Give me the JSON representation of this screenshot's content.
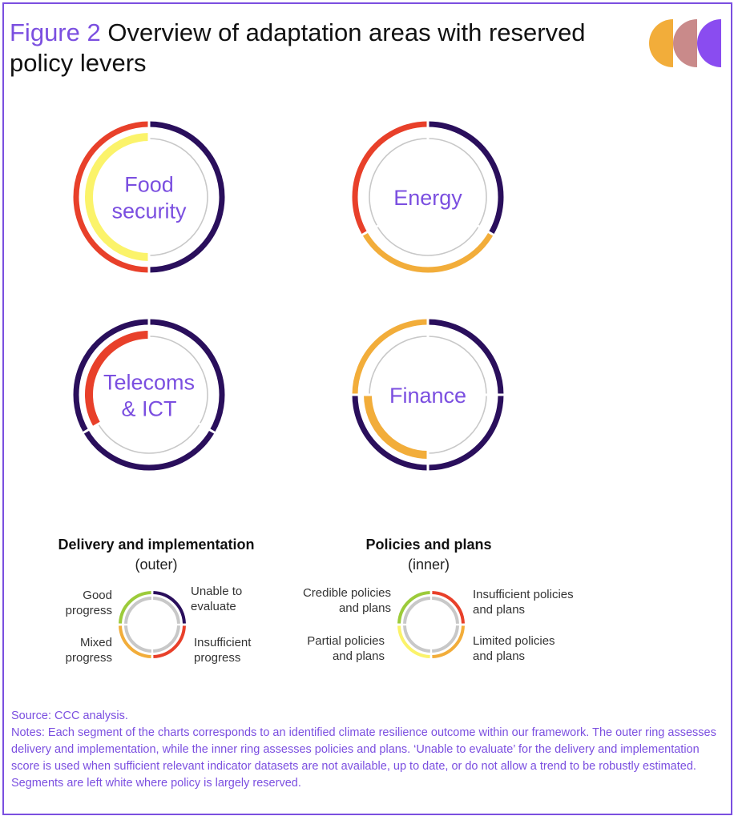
{
  "title": {
    "figure_label": "Figure 2",
    "text": "Overview of adaptation areas with reserved policy levers"
  },
  "colors": {
    "purple_accent": "#7b4fe0",
    "unable_to_evaluate": "#2a0f5c",
    "insufficient": "#e8402a",
    "mixed_limited": "#f2ad3a",
    "partial": "#fbf36a",
    "good_credible": "#9ccb3a",
    "reserved": "#c8c8c8",
    "logo_left": "#f2ad3a",
    "logo_mid": "#c98a8a",
    "logo_right": "#8a4cf0"
  },
  "rings": [
    {
      "name": "food-security",
      "label_lines": [
        "Food",
        "security"
      ],
      "outer": [
        {
          "start": 0,
          "end": 180,
          "status": "unable_to_evaluate"
        },
        {
          "start": 180,
          "end": 360,
          "status": "insufficient"
        }
      ],
      "inner": [
        {
          "start": 0,
          "end": 180,
          "status": "reserved"
        },
        {
          "start": 180,
          "end": 360,
          "status": "partial"
        }
      ]
    },
    {
      "name": "energy",
      "label_lines": [
        "Energy"
      ],
      "outer": [
        {
          "start": 0,
          "end": 120,
          "status": "unable_to_evaluate"
        },
        {
          "start": 120,
          "end": 240,
          "status": "mixed_limited"
        },
        {
          "start": 240,
          "end": 360,
          "status": "insufficient"
        }
      ],
      "inner": [
        {
          "start": 0,
          "end": 120,
          "status": "reserved"
        },
        {
          "start": 120,
          "end": 240,
          "status": "reserved"
        },
        {
          "start": 240,
          "end": 360,
          "status": "reserved"
        }
      ]
    },
    {
      "name": "telecoms-ict",
      "label_lines": [
        "Telecoms",
        "& ICT"
      ],
      "outer": [
        {
          "start": 0,
          "end": 120,
          "status": "unable_to_evaluate"
        },
        {
          "start": 120,
          "end": 240,
          "status": "unable_to_evaluate"
        },
        {
          "start": 240,
          "end": 360,
          "status": "unable_to_evaluate"
        }
      ],
      "inner": [
        {
          "start": 0,
          "end": 120,
          "status": "reserved"
        },
        {
          "start": 120,
          "end": 240,
          "status": "reserved"
        },
        {
          "start": 240,
          "end": 360,
          "status": "insufficient"
        }
      ]
    },
    {
      "name": "finance",
      "label_lines": [
        "Finance"
      ],
      "outer": [
        {
          "start": 0,
          "end": 90,
          "status": "unable_to_evaluate"
        },
        {
          "start": 90,
          "end": 180,
          "status": "unable_to_evaluate"
        },
        {
          "start": 180,
          "end": 270,
          "status": "unable_to_evaluate"
        },
        {
          "start": 270,
          "end": 360,
          "status": "mixed_limited"
        }
      ],
      "inner": [
        {
          "start": 0,
          "end": 90,
          "status": "reserved"
        },
        {
          "start": 90,
          "end": 180,
          "status": "reserved"
        },
        {
          "start": 180,
          "end": 270,
          "status": "mixed_limited"
        },
        {
          "start": 270,
          "end": 360,
          "status": "reserved"
        }
      ]
    }
  ],
  "legend": {
    "delivery": {
      "heading": "Delivery and implementation",
      "subheading": "(outer)",
      "labels": {
        "good": "Good progress",
        "unable": "Unable to evaluate",
        "mixed": "Mixed progress",
        "insufficient": "Insufficient progress"
      },
      "label_lines": {
        "good": [
          "Good",
          "progress"
        ],
        "unable": [
          "Unable to",
          "evaluate"
        ],
        "mixed": [
          "Mixed",
          "progress"
        ],
        "insufficient": [
          "Insufficient",
          "progress"
        ]
      }
    },
    "policies": {
      "heading": "Policies and plans",
      "subheading": "(inner)",
      "label_lines": {
        "credible": [
          "Credible policies",
          "and plans"
        ],
        "insufficient": [
          "Insufficient policies",
          "and plans"
        ],
        "partial": [
          "Partial policies",
          "and plans"
        ],
        "limited": [
          "Limited policies",
          "and plans"
        ]
      }
    }
  },
  "notes": {
    "source": "Source: CCC analysis.",
    "body": "Notes: Each segment of the charts corresponds to an identified climate resilience outcome within our framework. The outer ring assesses delivery and implementation, while the inner ring assesses policies and plans. ‘Unable to evaluate’ for the delivery and implementation score is used when sufficient relevant indicator datasets are not available, up to date, or do not allow a trend to be robustly estimated. Segments are left white where policy is largely reserved."
  }
}
